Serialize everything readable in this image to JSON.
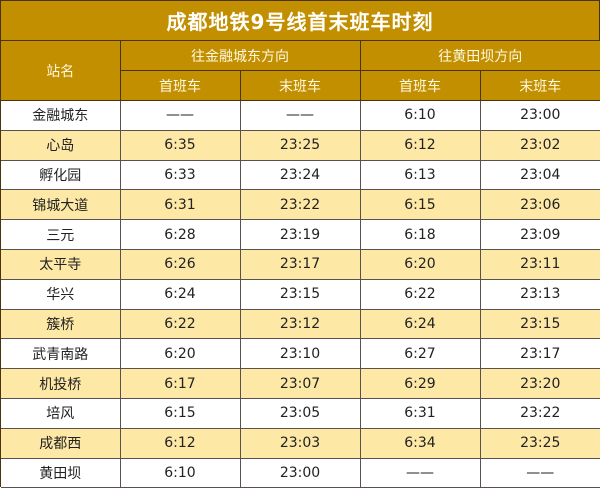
{
  "title": "成都地铁9号线首末班车时刻",
  "header": {
    "station_label": "站名",
    "directions": [
      {
        "label": "往金融城东方向",
        "first": "首班车",
        "last": "末班车"
      },
      {
        "label": "往黄田坝方向",
        "first": "首班车",
        "last": "末班车"
      }
    ]
  },
  "colors": {
    "header_bg": "#c28f00",
    "alt_row_bg": "#fde8a6",
    "border": "#4a3410"
  },
  "rows": [
    {
      "station": "金融城东",
      "d1_first": "——",
      "d1_last": "——",
      "d2_first": "6:10",
      "d2_last": "23:00"
    },
    {
      "station": "心岛",
      "d1_first": "6:35",
      "d1_last": "23:25",
      "d2_first": "6:12",
      "d2_last": "23:02"
    },
    {
      "station": "孵化园",
      "d1_first": "6:33",
      "d1_last": "23:24",
      "d2_first": "6:13",
      "d2_last": "23:04"
    },
    {
      "station": "锦城大道",
      "d1_first": "6:31",
      "d1_last": "23:22",
      "d2_first": "6:15",
      "d2_last": "23:06"
    },
    {
      "station": "三元",
      "d1_first": "6:28",
      "d1_last": "23:19",
      "d2_first": "6:18",
      "d2_last": "23:09"
    },
    {
      "station": "太平寺",
      "d1_first": "6:26",
      "d1_last": "23:17",
      "d2_first": "6:20",
      "d2_last": "23:11"
    },
    {
      "station": "华兴",
      "d1_first": "6:24",
      "d1_last": "23:15",
      "d2_first": "6:22",
      "d2_last": "23:13"
    },
    {
      "station": "簇桥",
      "d1_first": "6:22",
      "d1_last": "23:12",
      "d2_first": "6:24",
      "d2_last": "23:15"
    },
    {
      "station": "武青南路",
      "d1_first": "6:20",
      "d1_last": "23:10",
      "d2_first": "6:27",
      "d2_last": "23:17"
    },
    {
      "station": "机投桥",
      "d1_first": "6:17",
      "d1_last": "23:07",
      "d2_first": "6:29",
      "d2_last": "23:20"
    },
    {
      "station": "培风",
      "d1_first": "6:15",
      "d1_last": "23:05",
      "d2_first": "6:31",
      "d2_last": "23:22"
    },
    {
      "station": "成都西",
      "d1_first": "6:12",
      "d1_last": "23:03",
      "d2_first": "6:34",
      "d2_last": "23:25"
    },
    {
      "station": "黄田坝",
      "d1_first": "6:10",
      "d1_last": "23:00",
      "d2_first": "——",
      "d2_last": "——"
    }
  ]
}
